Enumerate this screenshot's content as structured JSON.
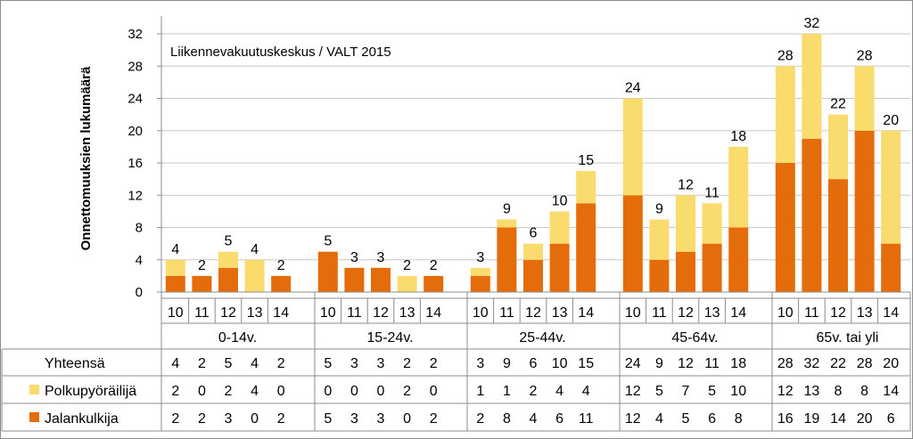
{
  "chart_data": {
    "type": "bar",
    "stacked": true,
    "title": "",
    "source_note": "Liikennevakuutuskeskus / VALT 2015",
    "ylabel": "Onnettomuuksien lukumäärä",
    "ylim": [
      0,
      32
    ],
    "yticks": [
      0,
      4,
      8,
      12,
      16,
      20,
      24,
      28,
      32
    ],
    "grid": true,
    "groups": [
      "0-14v.",
      "15-24v.",
      "25-44v.",
      "45-64v.",
      "65v. tai yli"
    ],
    "years": [
      "10",
      "11",
      "12",
      "13",
      "14"
    ],
    "series": [
      {
        "name": "Jalankulkija",
        "color": "#E46C0A",
        "values": [
          2,
          2,
          3,
          0,
          2,
          5,
          3,
          3,
          0,
          2,
          2,
          8,
          4,
          6,
          11,
          12,
          4,
          5,
          6,
          8,
          16,
          19,
          14,
          20,
          6
        ]
      },
      {
        "name": "Polkupyöräilijä",
        "color": "#FADB6E",
        "values": [
          2,
          0,
          2,
          4,
          0,
          0,
          0,
          0,
          2,
          0,
          1,
          1,
          2,
          4,
          4,
          12,
          5,
          7,
          5,
          10,
          12,
          13,
          8,
          8,
          14
        ]
      }
    ],
    "totals": {
      "name": "Yhteensä",
      "values": [
        4,
        2,
        5,
        4,
        2,
        5,
        3,
        3,
        2,
        2,
        3,
        9,
        6,
        10,
        15,
        24,
        9,
        12,
        11,
        18,
        28,
        32,
        22,
        28,
        20
      ]
    }
  }
}
